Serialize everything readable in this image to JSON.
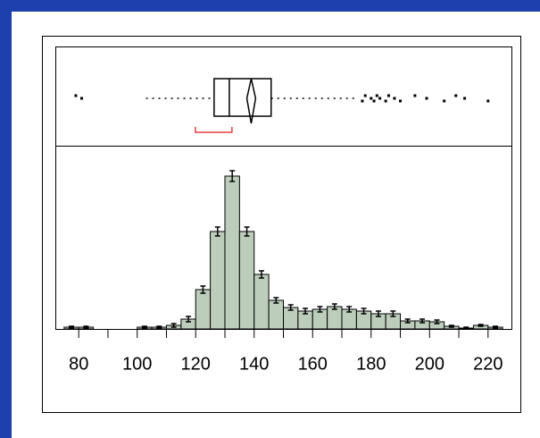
{
  "chart_data": {
    "type": "histogram",
    "bins": [
      75,
      80,
      85,
      90,
      95,
      100,
      105,
      110,
      115,
      120,
      125,
      130,
      135,
      140,
      145,
      150,
      155,
      160,
      165,
      170,
      175,
      180,
      185,
      190,
      195,
      200,
      205,
      210,
      215,
      220,
      225
    ],
    "values": [
      2,
      2,
      0,
      0,
      0,
      2,
      2,
      4,
      11,
      44,
      109,
      171,
      109,
      61,
      32,
      24,
      20,
      22,
      25,
      22,
      20,
      17,
      17,
      9,
      9,
      8,
      3,
      1,
      4,
      2
    ],
    "errors": [
      1,
      1,
      0,
      0,
      0,
      1,
      1,
      2,
      3,
      4,
      5,
      6,
      5,
      4,
      3,
      3,
      3,
      3,
      3,
      3,
      3,
      3,
      3,
      2,
      2,
      2,
      1,
      1,
      1,
      1
    ],
    "color": "#bccebb",
    "xlim": [
      72,
      228
    ],
    "ylim": [
      0,
      180
    ],
    "xticks": [
      80,
      100,
      120,
      140,
      160,
      180,
      200,
      220
    ],
    "minor_xticks": [
      90,
      110,
      130,
      150,
      170,
      190,
      210
    ],
    "box": {
      "whisker_low": 103,
      "q1": 126.3,
      "median": 131.5,
      "q3": 145.8,
      "whisker_high": 174.4,
      "mean": 139,
      "mean_ci": [
        137.5,
        140.5
      ],
      "shortest_half": [
        119.9,
        132.4
      ],
      "outliers": [
        79,
        81,
        177,
        178,
        180,
        181,
        182,
        183,
        185,
        186,
        188,
        190,
        195,
        199,
        205,
        209,
        212,
        220
      ]
    }
  }
}
